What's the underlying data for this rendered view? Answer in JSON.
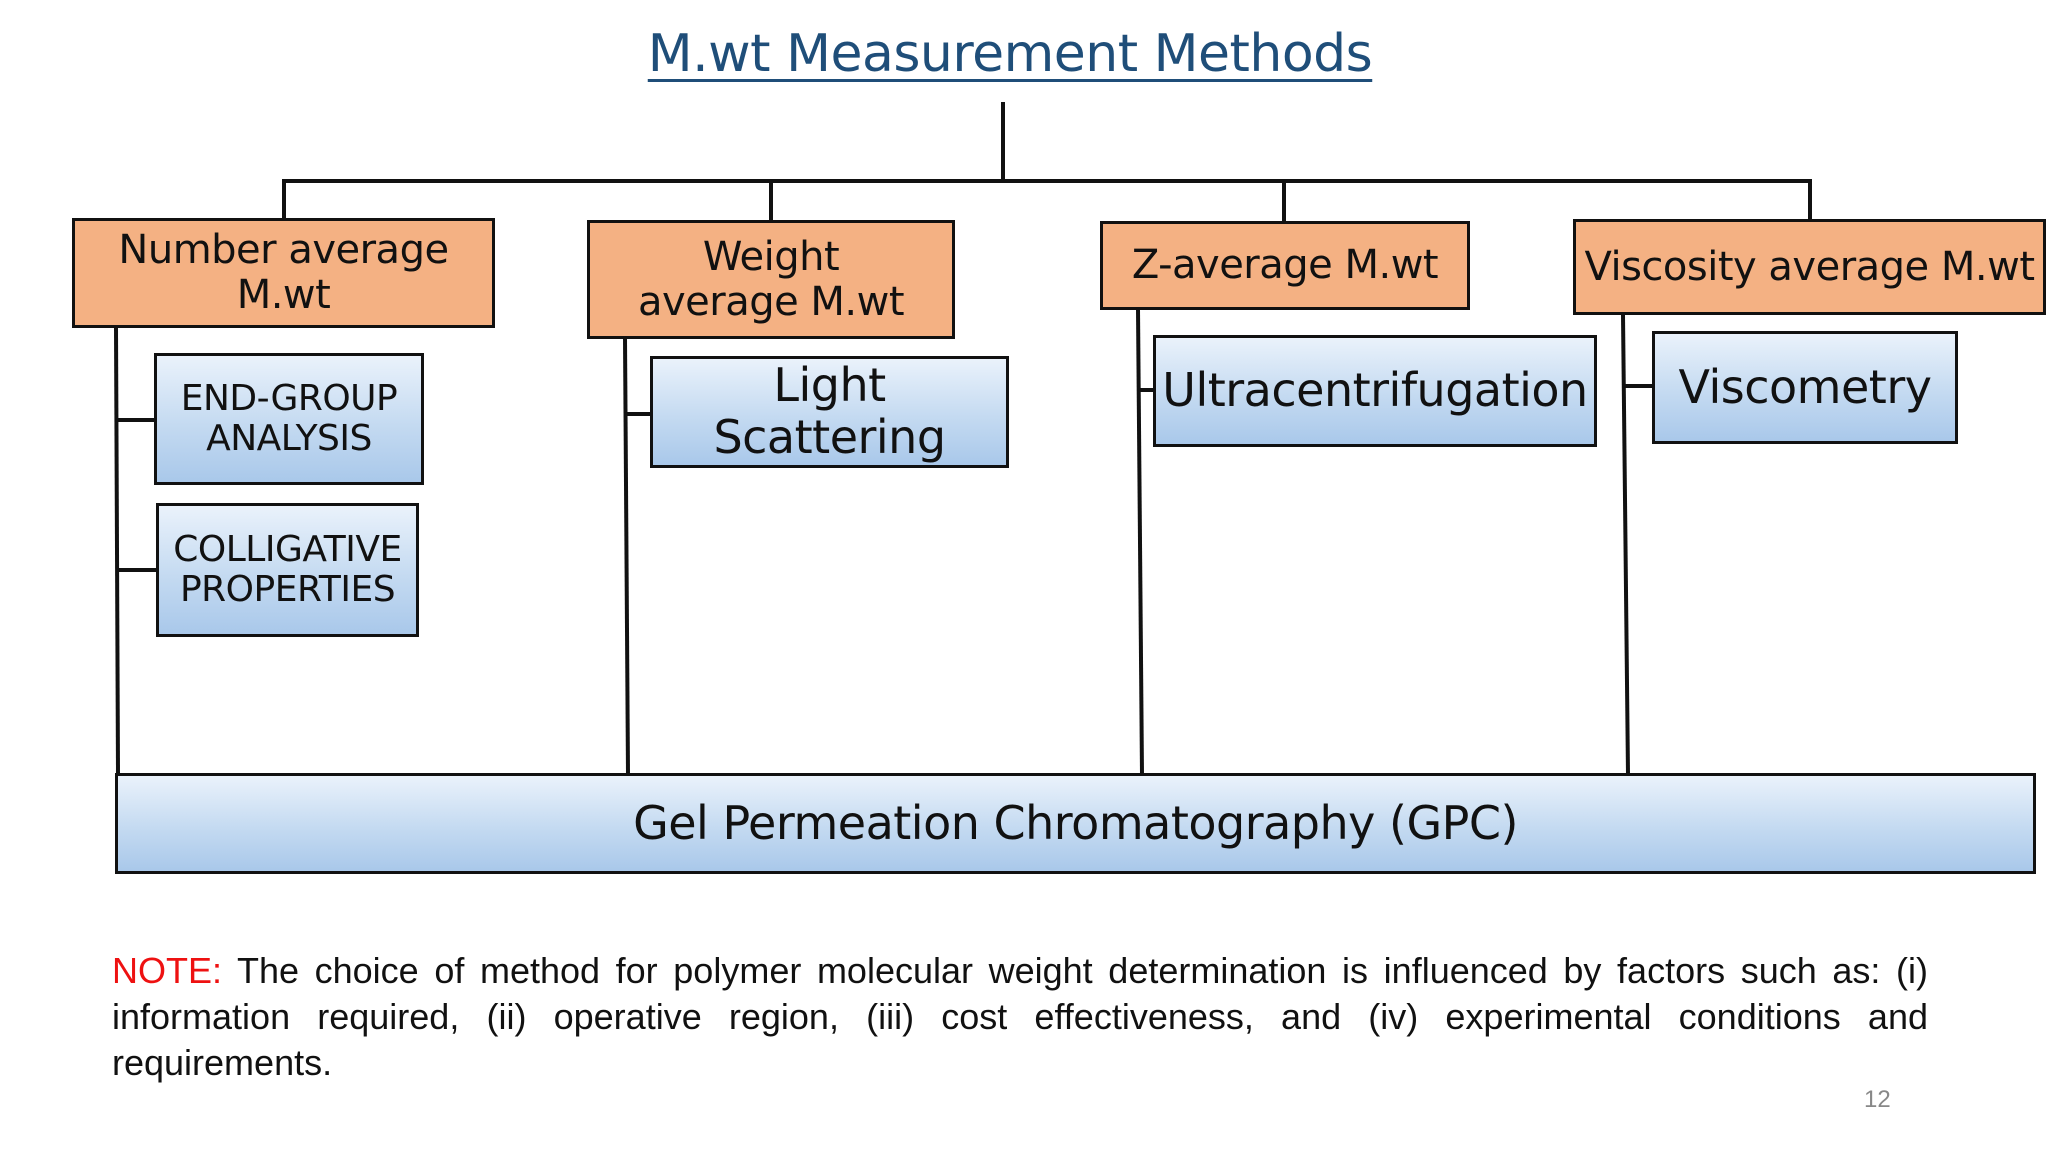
{
  "title": "M.wt Measurement Methods",
  "categories": {
    "number": "Number average M.wt",
    "weight": "Weight average M.wt",
    "z": "Z-average M.wt",
    "viscosity": "Viscosity average M.wt"
  },
  "methods": {
    "end_group": "END-GROUP ANALYSIS",
    "colligative": "COLLIGATIVE PROPERTIES",
    "light_scattering": "Light Scattering",
    "ultracentrifugation": "Ultracentrifugation",
    "viscometry": "Viscometry",
    "gpc": "Gel Permeation Chromatography (GPC)"
  },
  "note": {
    "label": "NOTE:",
    "text": " The choice of method for polymer molecular weight determination is influenced by factors such as: (i) information required, (ii) operative region, (iii) cost effectiveness, and (iv) experimental conditions and requirements."
  },
  "page_number": "12",
  "colors": {
    "title": "#1f4e79",
    "category_fill": "#f4b183",
    "method_fill": "#c4daf1",
    "note_label": "#ee1111"
  }
}
